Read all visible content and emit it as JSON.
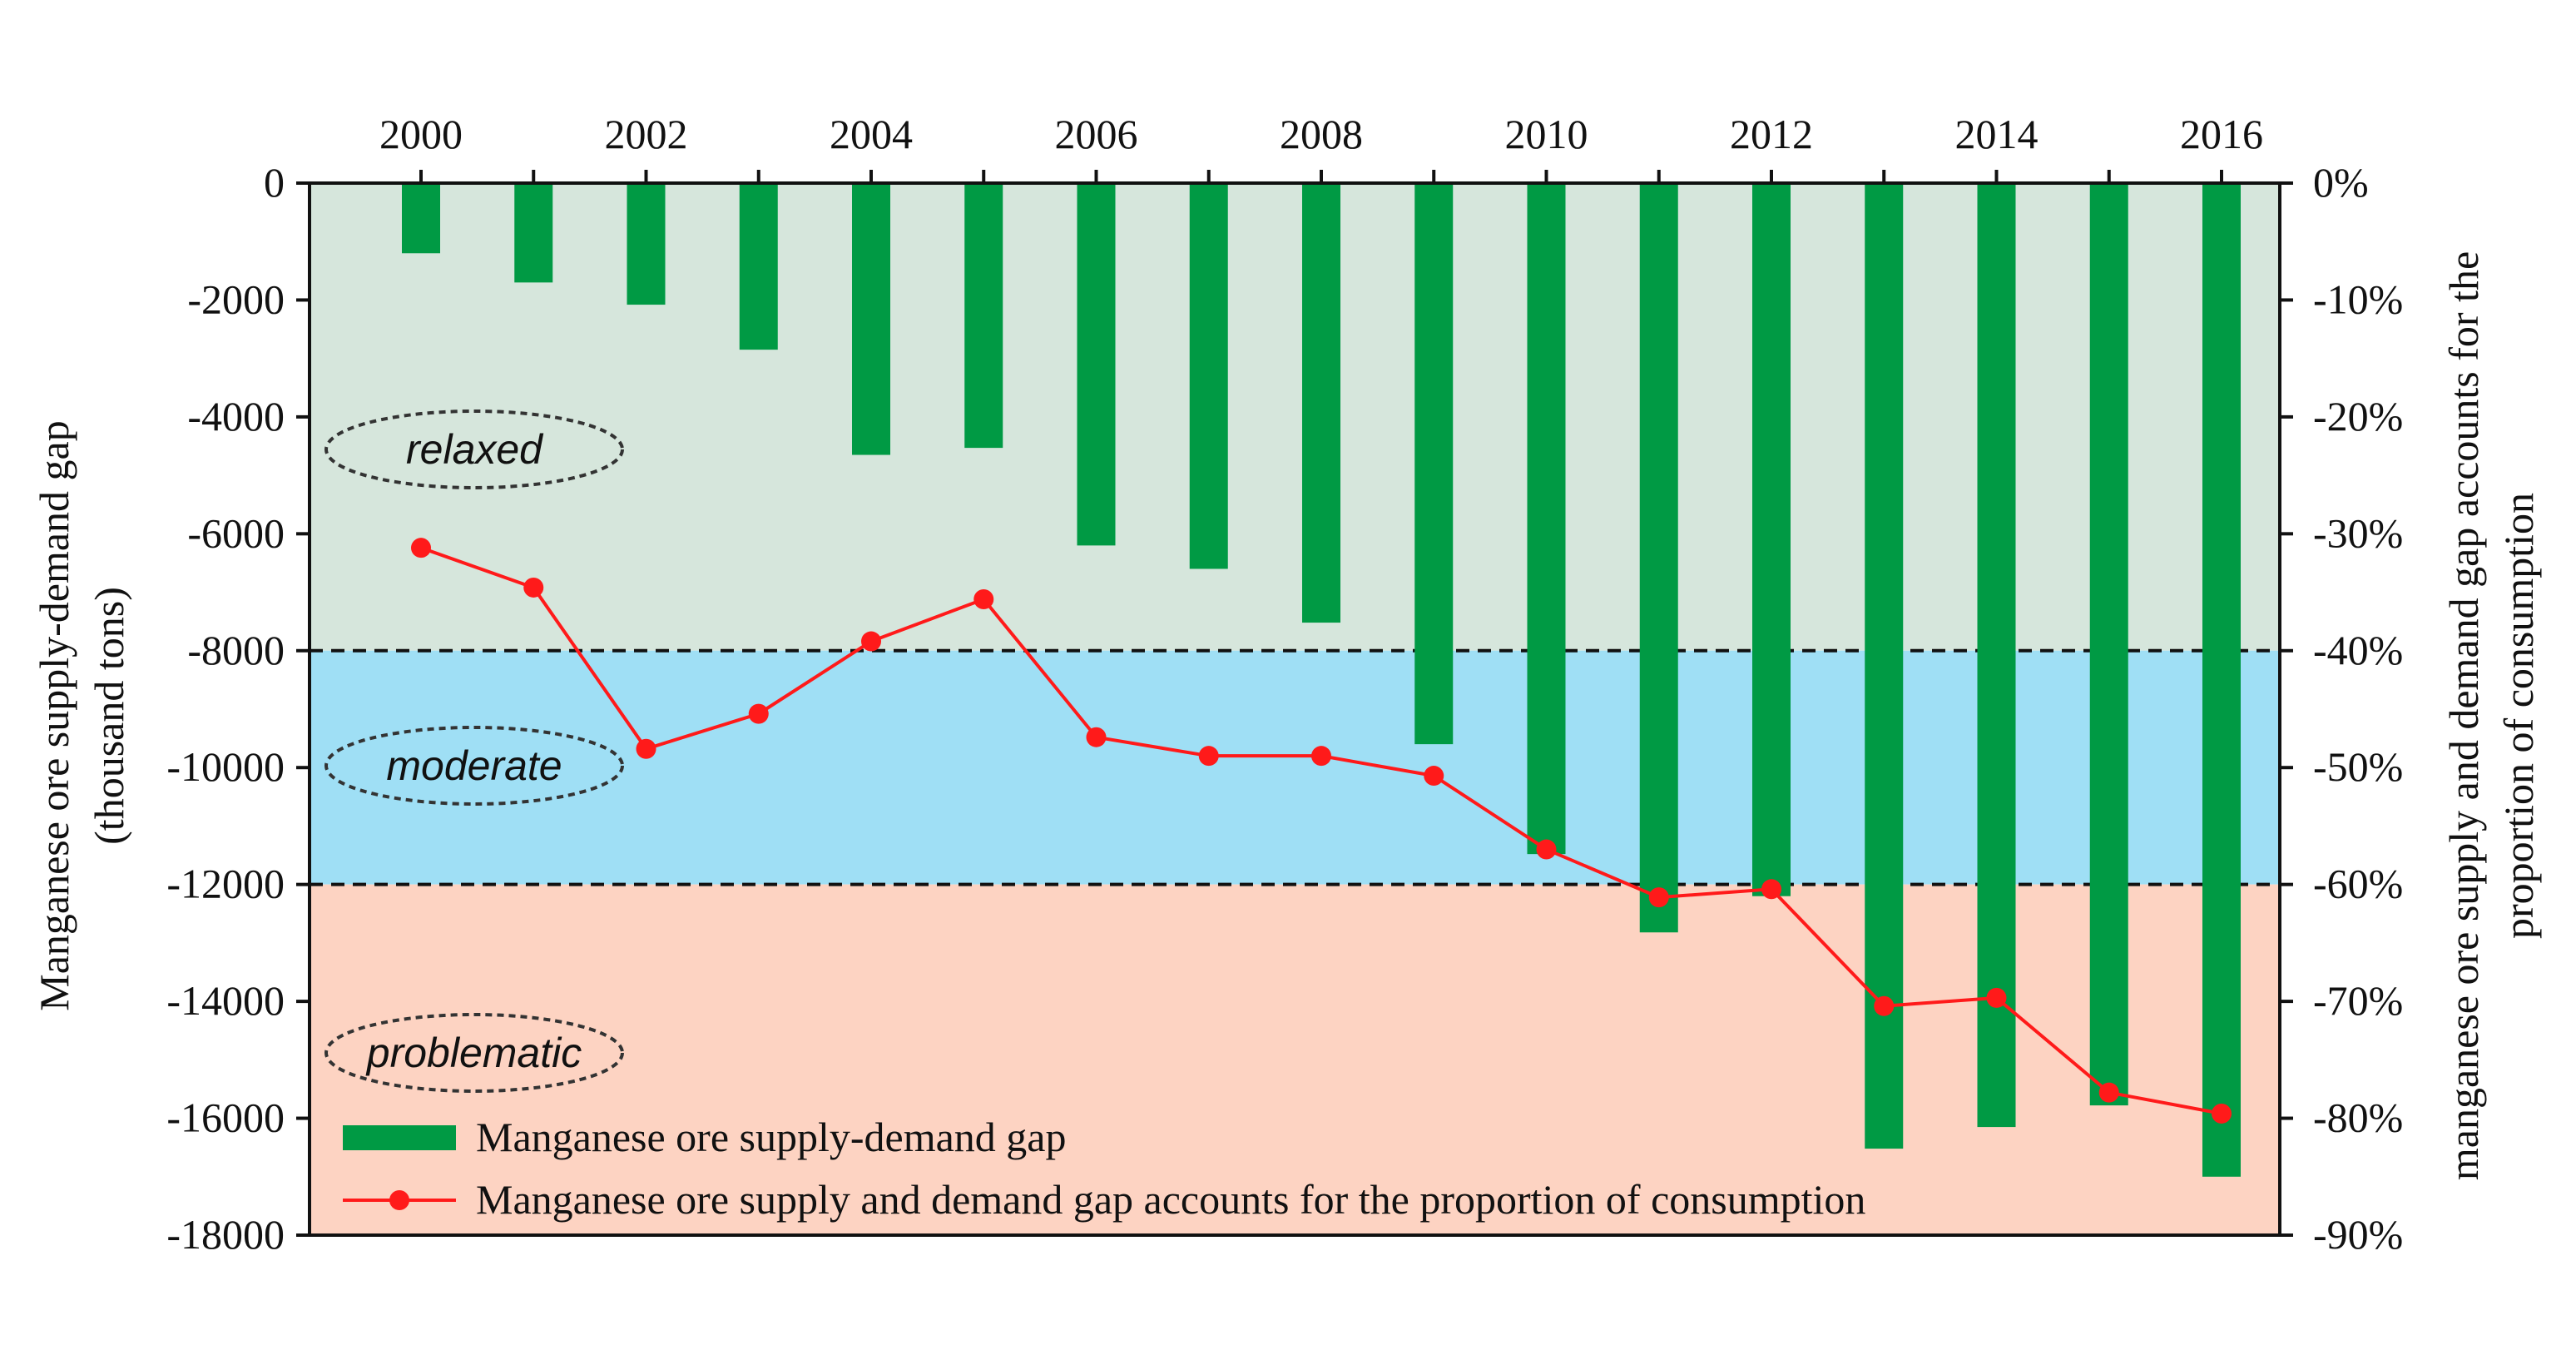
{
  "chart_data": {
    "type": "bar+line",
    "categories": [
      2000,
      2001,
      2002,
      2003,
      2004,
      2005,
      2006,
      2007,
      2008,
      2009,
      2010,
      2011,
      2012,
      2013,
      2014,
      2015,
      2016
    ],
    "x_tick_labels": [
      "2000",
      "2002",
      "2004",
      "2006",
      "2008",
      "2010",
      "2012",
      "2014",
      "2016"
    ],
    "series": [
      {
        "name": "Manganese ore supply-demand gap",
        "type": "bar",
        "axis": "left",
        "color": "#009a44",
        "values": [
          -1200,
          -1700,
          -2080,
          -2850,
          -4650,
          -4530,
          -6200,
          -6600,
          -7520,
          -9600,
          -11480,
          -12820,
          -12200,
          -16520,
          -16150,
          -15780,
          -17000
        ]
      },
      {
        "name": "Manganese ore supply and demand gap accounts for the proportion of consumption",
        "type": "line",
        "axis": "right",
        "color": "#ff1a1a",
        "values": [
          -31.2,
          -34.6,
          -48.4,
          -45.4,
          -39.2,
          -35.6,
          -47.4,
          -49.0,
          -49.0,
          -50.7,
          -57.0,
          -61.1,
          -60.4,
          -70.4,
          -69.7,
          -77.8,
          -79.6
        ]
      }
    ],
    "ylabel": "Manganese ore supply-demand gap",
    "ylabel_unit": "(thousand tons)",
    "y2label": "manganese ore supply and demand gap accounts for the",
    "y2label_line2": "proportion of consumption",
    "ylim": [
      -18000,
      0
    ],
    "y2lim": [
      -90,
      0
    ],
    "y_ticks": [
      "0",
      "-2000",
      "-4000",
      "-6000",
      "-8000",
      "-10000",
      "-12000",
      "-14000",
      "-16000",
      "-18000"
    ],
    "y2_ticks": [
      "0%",
      "-10%",
      "-20%",
      "-30%",
      "-40%",
      "-50%",
      "-60%",
      "-70%",
      "-80%",
      "-90%"
    ],
    "zones": [
      {
        "label": "relaxed",
        "from": 0,
        "to": -8000,
        "color": "#d6e6dc"
      },
      {
        "label": "moderate",
        "from": -8000,
        "to": -12000,
        "color": "#9fdff5"
      },
      {
        "label": "problematic",
        "from": -12000,
        "to": -18000,
        "color": "#fdd3c2"
      }
    ],
    "legend_position": "bottom-left",
    "grid": false
  }
}
